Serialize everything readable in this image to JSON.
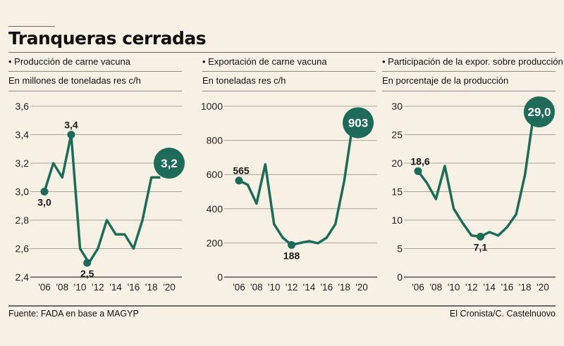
{
  "title": "Tranqueras cerradas",
  "footer": {
    "source": "Fuente: FADA en base a MAGYP",
    "credit": "El Cronista/C. Castelnuovo"
  },
  "colors": {
    "line": "#1d6b58",
    "background": "#f7f0e5",
    "grid": "#8a8a86"
  },
  "chart_data": [
    {
      "type": "line",
      "title": "• Producción de carne vacuna",
      "ylabel": "En millones de toneladas res c/h",
      "x": [
        2006,
        2007,
        2008,
        2009,
        2010,
        2011,
        2012,
        2013,
        2014,
        2015,
        2016,
        2017,
        2018,
        2019
      ],
      "values": [
        3.0,
        3.2,
        3.1,
        3.4,
        2.6,
        2.5,
        2.6,
        2.8,
        2.7,
        2.7,
        2.6,
        2.8,
        3.1,
        3.1
      ],
      "ylim": [
        2.4,
        3.6
      ],
      "yticks": [
        "2,4",
        "2,6",
        "2,8",
        "3,0",
        "3,2",
        "3,4",
        "3,6"
      ],
      "xticks": [
        "'06",
        "'08",
        "'10",
        "'12",
        "'14",
        "'16",
        "'18",
        "'20"
      ],
      "annotations": [
        {
          "x": 2006,
          "y": 3.0,
          "label": "3,0",
          "pos": "below"
        },
        {
          "x": 2009,
          "y": 3.4,
          "label": "3,4",
          "pos": "above"
        },
        {
          "x": 2010.8,
          "y": 2.5,
          "label": "2,5",
          "pos": "below"
        },
        {
          "x": 2020,
          "y": 3.2,
          "label": "3,2",
          "pos": "bubble"
        }
      ]
    },
    {
      "type": "line",
      "title": "• Exportación de carne vacuna",
      "ylabel": "En toneladas res c/h",
      "x": [
        2006,
        2007,
        2008,
        2009,
        2010,
        2011,
        2012,
        2013,
        2014,
        2015,
        2016,
        2017,
        2018,
        2019
      ],
      "values": [
        565,
        540,
        430,
        660,
        310,
        230,
        188,
        200,
        210,
        198,
        230,
        310,
        560,
        903
      ],
      "ylim": [
        0,
        1000
      ],
      "yticks": [
        "0",
        "200",
        "400",
        "600",
        "800",
        "1000"
      ],
      "xticks": [
        "'06",
        "'08",
        "'10",
        "'12",
        "'14",
        "'16",
        "'18",
        "'20"
      ],
      "annotations": [
        {
          "x": 2006,
          "y": 565,
          "label": "565",
          "pos": "above"
        },
        {
          "x": 2012,
          "y": 188,
          "label": "188",
          "pos": "below"
        },
        {
          "x": 2019.6,
          "y": 903,
          "label": "903",
          "pos": "bubble"
        }
      ]
    },
    {
      "type": "line",
      "title": "• Participación de la expor. sobre producción",
      "ylabel": "En porcentaje de la producción",
      "x": [
        2006,
        2007,
        2008,
        2009,
        2010,
        2011,
        2012,
        2013,
        2014,
        2015,
        2016,
        2017,
        2018,
        2019
      ],
      "values": [
        18.6,
        16.5,
        13.7,
        19.5,
        12.0,
        9.5,
        7.3,
        7.1,
        7.9,
        7.3,
        8.8,
        11.0,
        18.0,
        29.0
      ],
      "ylim": [
        0,
        30
      ],
      "yticks": [
        "0",
        "5",
        "10",
        "15",
        "20",
        "25",
        "30"
      ],
      "xticks": [
        "'06",
        "'08",
        "'10",
        "'12",
        "'14",
        "'16",
        "'18",
        "'20"
      ],
      "annotations": [
        {
          "x": 2006,
          "y": 18.6,
          "label": "18,6",
          "pos": "above"
        },
        {
          "x": 2013,
          "y": 7.1,
          "label": "7,1",
          "pos": "below"
        },
        {
          "x": 2019.6,
          "y": 29.0,
          "label": "29,0",
          "pos": "bubble"
        }
      ]
    }
  ]
}
